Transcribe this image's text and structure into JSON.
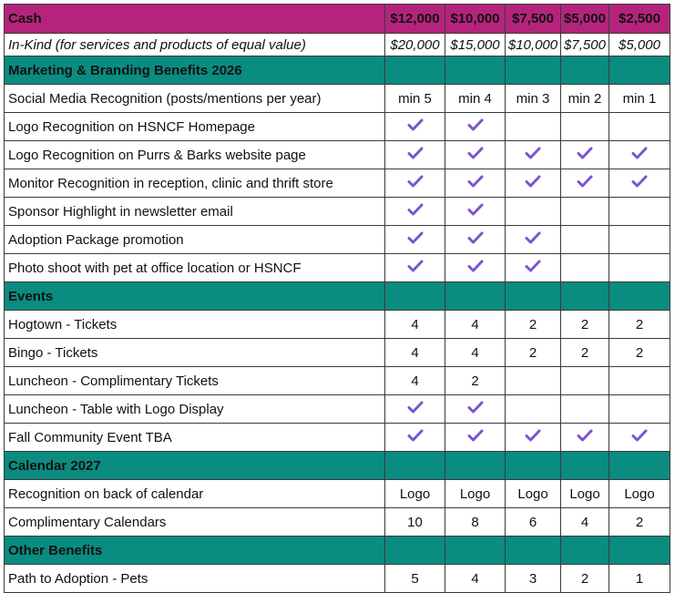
{
  "header": {
    "label": "Cash",
    "tiers": [
      "$12,000",
      "$10,000",
      "$7,500",
      "$5,000",
      "$2,500"
    ]
  },
  "inkind": {
    "label": "In-Kind (for services and products of equal value)",
    "values": [
      "$20,000",
      "$15,000",
      "$10,000",
      "$7,500",
      "$5,000"
    ]
  },
  "colors": {
    "header_bg": "#b5247c",
    "section_bg": "#0a8c80",
    "check": "#7b55d0"
  },
  "check_icon": "check-icon",
  "sections": [
    {
      "title": "Marketing & Branding Benefits 2026",
      "rows": [
        {
          "label": "Social Media Recognition (posts/mentions per year)",
          "cells": [
            "min 5",
            "min 4",
            "min 3",
            "min 2",
            "min 1"
          ]
        },
        {
          "label": "Logo Recognition on HSNCF Homepage",
          "cells": [
            "check",
            "check",
            "",
            "",
            ""
          ]
        },
        {
          "label": "Logo Recognition on Purrs & Barks website page",
          "cells": [
            "check",
            "check",
            "check",
            "check",
            "check"
          ]
        },
        {
          "label": "Monitor Recognition in reception, clinic and thrift store",
          "cells": [
            "check",
            "check",
            "check",
            "check",
            "check"
          ]
        },
        {
          "label": "Sponsor Highlight in newsletter email",
          "cells": [
            "check",
            "check",
            "",
            "",
            ""
          ]
        },
        {
          "label": "Adoption Package promotion",
          "cells": [
            "check",
            "check",
            "check",
            "",
            ""
          ]
        },
        {
          "label": "Photo shoot with pet at office location or HSNCF",
          "cells": [
            "check",
            "check",
            "check",
            "",
            ""
          ]
        }
      ]
    },
    {
      "title": "Events",
      "rows": [
        {
          "label": "Hogtown - Tickets",
          "cells": [
            "4",
            "4",
            "2",
            "2",
            "2"
          ]
        },
        {
          "label": "Bingo - Tickets",
          "cells": [
            "4",
            "4",
            "2",
            "2",
            "2"
          ]
        },
        {
          "label": "Luncheon - Complimentary Tickets",
          "cells": [
            "4",
            "2",
            "",
            "",
            ""
          ]
        },
        {
          "label": "Luncheon - Table with Logo Display",
          "cells": [
            "check",
            "check",
            "",
            "",
            ""
          ]
        },
        {
          "label": "Fall Community Event TBA",
          "cells": [
            "check",
            "check",
            "check",
            "check",
            "check"
          ]
        }
      ]
    },
    {
      "title": "Calendar 2027",
      "rows": [
        {
          "label": "Recognition on back of calendar",
          "cells": [
            "Logo",
            "Logo",
            "Logo",
            "Logo",
            "Logo"
          ]
        },
        {
          "label": "Complimentary Calendars",
          "cells": [
            "10",
            "8",
            "6",
            "4",
            "2"
          ]
        }
      ]
    },
    {
      "title": "Other Benefits",
      "rows": [
        {
          "label": "Path to Adoption - Pets",
          "cells": [
            "5",
            "4",
            "3",
            "2",
            "1"
          ]
        }
      ]
    }
  ]
}
